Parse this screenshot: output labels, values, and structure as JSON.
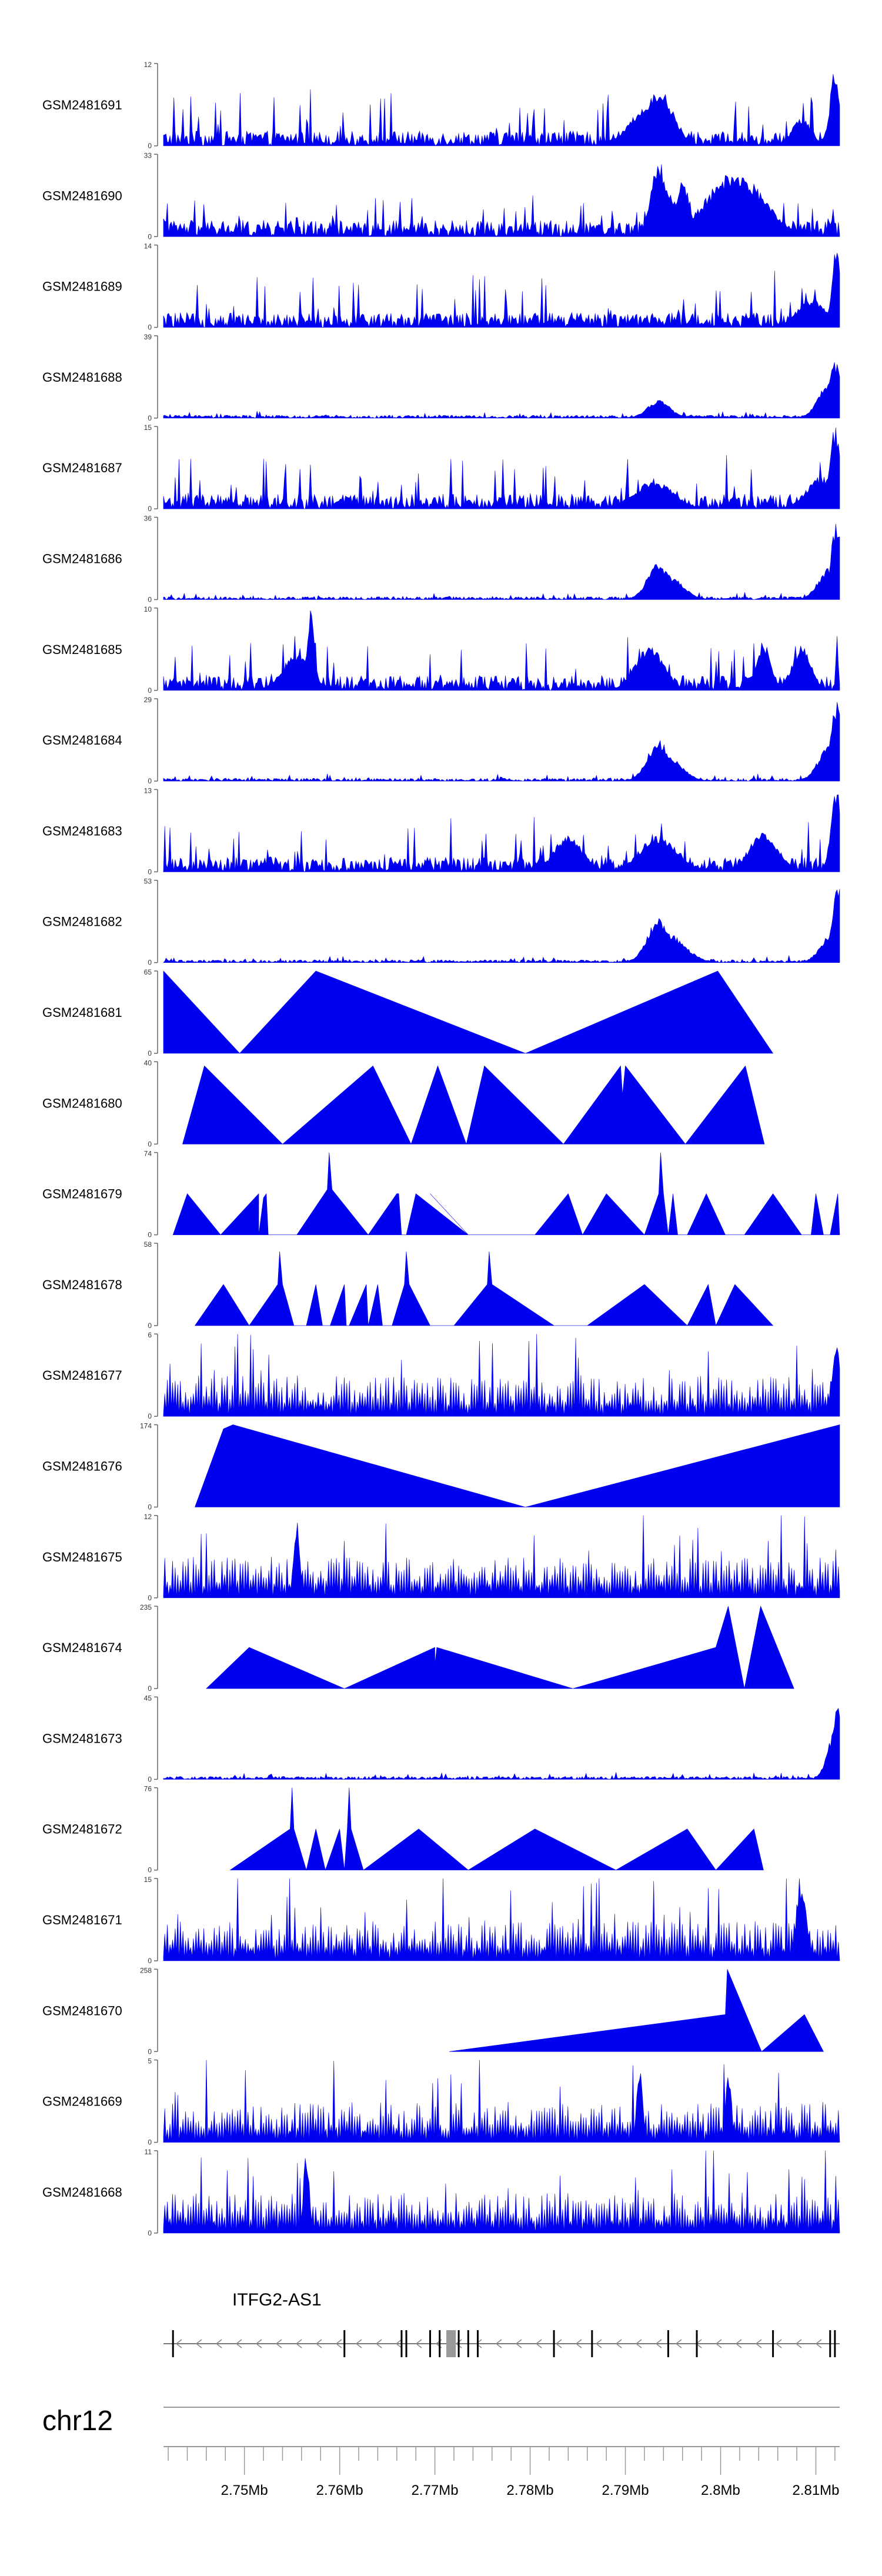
{
  "chart_data": {
    "type": "area",
    "title": "",
    "chromosome": "chr12",
    "gene": {
      "name": "ITFG2-AS1",
      "strand": "-"
    },
    "x_unit": "Mb",
    "xlim": [
      2.7415,
      2.8125
    ],
    "x_ticks": [
      2.75,
      2.76,
      2.77,
      2.78,
      2.79,
      2.8,
      2.81
    ],
    "x_tick_labels": [
      "2.75Mb",
      "2.76Mb",
      "2.77Mb",
      "2.78Mb",
      "2.79Mb",
      "2.8Mb",
      "2.81Mb"
    ],
    "exons_mb": [
      2.7425,
      2.7605,
      2.7665,
      2.767,
      2.7695,
      2.7705,
      2.7715,
      2.7725,
      2.7735,
      2.7745,
      2.7825,
      2.7865,
      2.7945,
      2.7975,
      2.8055,
      2.8115,
      2.812
    ],
    "exon_block_mb": [
      2.7712,
      2.7722
    ],
    "tracks": [
      {
        "name": "GSM2481691",
        "ymax": 12,
        "ymin_label": "0",
        "ymax_label": "12",
        "style": "dense",
        "peaks": [
          [
            2.7935,
            0.7,
            0.0015
          ],
          [
            2.7925,
            0.5,
            0.002
          ],
          [
            2.812,
            1.0,
            0.0005
          ],
          [
            2.8085,
            0.35,
            0.001
          ]
        ]
      },
      {
        "name": "GSM2481690",
        "ymax": 33,
        "ymin_label": "0",
        "ymax_label": "33",
        "style": "sparse-tri",
        "peaks": [
          [
            2.8015,
            0.8,
            0.003
          ],
          [
            2.7935,
            0.95,
            0.0008
          ],
          [
            2.796,
            0.7,
            0.0008
          ],
          [
            2.7945,
            0.6,
            0.0008
          ]
        ]
      },
      {
        "name": "GSM2481689",
        "ymax": 14,
        "ymin_label": "0",
        "ymax_label": "14",
        "style": "dense",
        "peaks": [
          [
            2.8122,
            1.0,
            0.0005
          ],
          [
            2.8095,
            0.35,
            0.0015
          ]
        ]
      },
      {
        "name": "GSM2481688",
        "ymax": 39,
        "ymin_label": "0",
        "ymax_label": "39",
        "style": "low",
        "peaks": [
          [
            2.7935,
            0.22,
            0.0012
          ],
          [
            2.812,
            0.7,
            0.0008
          ],
          [
            2.8115,
            0.45,
            0.0012
          ]
        ]
      },
      {
        "name": "GSM2481687",
        "ymax": 15,
        "ymin_label": "0",
        "ymax_label": "15",
        "style": "dense",
        "peaks": [
          [
            2.812,
            1.0,
            0.0006
          ],
          [
            2.8105,
            0.4,
            0.0015
          ],
          [
            2.793,
            0.35,
            0.002
          ]
        ]
      },
      {
        "name": "GSM2481686",
        "ymax": 36,
        "ymin_label": "0",
        "ymax_label": "36",
        "style": "low",
        "peaks": [
          [
            2.7935,
            0.45,
            0.0012
          ],
          [
            2.7945,
            0.3,
            0.0015
          ],
          [
            2.8122,
            0.98,
            0.0006
          ],
          [
            2.8115,
            0.4,
            0.0012
          ]
        ]
      },
      {
        "name": "GSM2481685",
        "ymax": 10,
        "ymin_label": "0",
        "ymax_label": "10",
        "style": "dense",
        "peaks": [
          [
            2.757,
            1.0,
            0.0004
          ],
          [
            2.7555,
            0.45,
            0.0015
          ],
          [
            2.7925,
            0.55,
            0.0015
          ],
          [
            2.8045,
            0.6,
            0.0008
          ],
          [
            2.8085,
            0.55,
            0.001
          ]
        ]
      },
      {
        "name": "GSM2481684",
        "ymax": 29,
        "ymin_label": "0",
        "ymax_label": "29",
        "style": "low",
        "peaks": [
          [
            2.7935,
            0.5,
            0.0012
          ],
          [
            2.7945,
            0.3,
            0.0015
          ],
          [
            2.8122,
            1.0,
            0.0006
          ],
          [
            2.8115,
            0.45,
            0.0012
          ]
        ]
      },
      {
        "name": "GSM2481683",
        "ymax": 13,
        "ymin_label": "0",
        "ymax_label": "13",
        "style": "dense",
        "peaks": [
          [
            2.8122,
            1.0,
            0.0006
          ],
          [
            2.7935,
            0.45,
            0.002
          ],
          [
            2.8045,
            0.5,
            0.0015
          ],
          [
            2.784,
            0.45,
            0.0015
          ]
        ]
      },
      {
        "name": "GSM2481682",
        "ymax": 53,
        "ymin_label": "0",
        "ymax_label": "53",
        "style": "low",
        "peaks": [
          [
            2.7935,
            0.55,
            0.0012
          ],
          [
            2.7945,
            0.35,
            0.0018
          ],
          [
            2.8123,
            1.0,
            0.0006
          ],
          [
            2.8117,
            0.35,
            0.0012
          ]
        ]
      },
      {
        "name": "GSM2481681",
        "ymax": 65,
        "ymin_label": "0",
        "ymax_label": "65",
        "style": "points",
        "points": [
          [
            2.7415,
            1.0
          ],
          [
            2.7495,
            0.0
          ],
          [
            2.7575,
            1.0
          ],
          [
            2.7795,
            0.0
          ],
          [
            2.7997,
            1.0
          ],
          [
            2.8055,
            0.0
          ]
        ]
      },
      {
        "name": "GSM2481680",
        "ymax": 40,
        "ymin_label": "0",
        "ymax_label": "40",
        "style": "points",
        "points": [
          [
            2.7435,
            0.0
          ],
          [
            2.7458,
            0.95
          ],
          [
            2.754,
            0.0
          ],
          [
            2.7635,
            0.95
          ],
          [
            2.7675,
            0.0
          ],
          [
            2.7703,
            0.95
          ],
          [
            2.7733,
            0.0
          ],
          [
            2.7752,
            0.95
          ],
          [
            2.7835,
            0.0
          ],
          [
            2.7895,
            0.95
          ],
          [
            2.7897,
            0.6
          ],
          [
            2.79,
            0.95
          ],
          [
            2.7963,
            0.0
          ],
          [
            2.8026,
            0.95
          ],
          [
            2.8046,
            0.0
          ]
        ]
      },
      {
        "name": "GSM2481679",
        "ymax": 74,
        "ymin_label": "0",
        "ymax_label": "74",
        "style": "points",
        "points": [
          [
            2.7425,
            0.0
          ],
          [
            2.744,
            0.5
          ],
          [
            2.7475,
            0.0
          ],
          [
            2.7515,
            0.5
          ],
          [
            2.7515,
            0.0
          ],
          [
            2.752,
            0.45
          ],
          [
            2.7523,
            0.5
          ],
          [
            2.7525,
            0.0
          ],
          [
            2.7555,
            0.0
          ],
          [
            2.7587,
            0.55
          ],
          [
            2.7589,
            1.0
          ],
          [
            2.7592,
            0.55
          ],
          [
            2.763,
            0.0
          ],
          [
            2.766,
            0.5
          ],
          [
            2.7662,
            0.5
          ],
          [
            2.7665,
            0.0
          ],
          [
            2.767,
            0.0
          ],
          [
            2.768,
            0.5
          ],
          [
            2.7735,
            0.0
          ],
          [
            2.7695,
            0.5
          ],
          [
            2.7735,
            0.0
          ],
          [
            2.7805,
            0.0
          ],
          [
            2.784,
            0.5
          ],
          [
            2.7855,
            0.0
          ],
          [
            2.788,
            0.5
          ],
          [
            2.792,
            0.0
          ],
          [
            2.7935,
            0.5
          ],
          [
            2.7937,
            1.0
          ],
          [
            2.794,
            0.5
          ],
          [
            2.7945,
            0.0
          ],
          [
            2.795,
            0.5
          ],
          [
            2.7955,
            0.0
          ],
          [
            2.7965,
            0.0
          ],
          [
            2.7985,
            0.5
          ],
          [
            2.8005,
            0.0
          ],
          [
            2.8025,
            0.0
          ],
          [
            2.8055,
            0.5
          ],
          [
            2.8085,
            0.0
          ],
          [
            2.8095,
            0.0
          ],
          [
            2.81,
            0.5
          ],
          [
            2.8108,
            0.0
          ],
          [
            2.8115,
            0.0
          ],
          [
            2.8123,
            0.5
          ],
          [
            2.8125,
            0.0
          ]
        ]
      },
      {
        "name": "GSM2481678",
        "ymax": 58,
        "ymin_label": "0",
        "ymax_label": "58",
        "style": "points",
        "points": [
          [
            2.7448,
            0.0
          ],
          [
            2.7478,
            0.5
          ],
          [
            2.7505,
            0.0
          ],
          [
            2.7535,
            0.5
          ],
          [
            2.7537,
            0.9
          ],
          [
            2.754,
            0.5
          ],
          [
            2.7552,
            0.0
          ],
          [
            2.7565,
            0.0
          ],
          [
            2.7575,
            0.5
          ],
          [
            2.7582,
            0.0
          ],
          [
            2.759,
            0.0
          ],
          [
            2.7605,
            0.5
          ],
          [
            2.7607,
            0.0
          ],
          [
            2.761,
            0.0
          ],
          [
            2.7628,
            0.5
          ],
          [
            2.763,
            0.0
          ],
          [
            2.764,
            0.5
          ],
          [
            2.7645,
            0.0
          ],
          [
            2.7655,
            0.0
          ],
          [
            2.7668,
            0.5
          ],
          [
            2.767,
            0.9
          ],
          [
            2.7673,
            0.5
          ],
          [
            2.7695,
            0.0
          ],
          [
            2.772,
            0.0
          ],
          [
            2.7755,
            0.5
          ],
          [
            2.7757,
            0.9
          ],
          [
            2.776,
            0.5
          ],
          [
            2.7825,
            0.0
          ],
          [
            2.786,
            0.0
          ],
          [
            2.792,
            0.5
          ],
          [
            2.7965,
            0.0
          ],
          [
            2.7987,
            0.5
          ],
          [
            2.7995,
            0.0
          ],
          [
            2.8015,
            0.5
          ],
          [
            2.8055,
            0.0
          ]
        ]
      },
      {
        "name": "GSM2481677",
        "ymax": 6,
        "ymin_label": "0",
        "ymax_label": "6",
        "style": "dense-high",
        "peaks": [
          [
            2.8122,
            0.85,
            0.0005
          ]
        ]
      },
      {
        "name": "GSM2481676",
        "ymax": 174,
        "ymin_label": "0",
        "ymax_label": "174",
        "style": "points",
        "points": [
          [
            2.7448,
            0.0
          ],
          [
            2.7478,
            0.95
          ],
          [
            2.7488,
            1.0
          ],
          [
            2.7795,
            0.0
          ],
          [
            2.8125,
            1.0
          ]
        ]
      },
      {
        "name": "GSM2481675",
        "ymax": 12,
        "ymin_label": "0",
        "ymax_label": "12",
        "style": "dense-high",
        "peaks": [
          [
            2.7555,
            1.0,
            0.0003
          ]
        ]
      },
      {
        "name": "GSM2481674",
        "ymax": 235,
        "ymin_label": "0",
        "ymax_label": "235",
        "style": "points",
        "points": [
          [
            2.746,
            0.0
          ],
          [
            2.7505,
            0.5
          ],
          [
            2.7605,
            0.0
          ],
          [
            2.77,
            0.5
          ],
          [
            2.77,
            0.3
          ],
          [
            2.7702,
            0.5
          ],
          [
            2.7845,
            0.0
          ],
          [
            2.7995,
            0.5
          ],
          [
            2.8008,
            1.0
          ],
          [
            2.8025,
            0.0
          ],
          [
            2.8042,
            1.0
          ],
          [
            2.8077,
            0.0
          ]
        ]
      },
      {
        "name": "GSM2481673",
        "ymax": 45,
        "ymin_label": "0",
        "ymax_label": "45",
        "style": "low",
        "peaks": [
          [
            2.8123,
            1.0,
            0.0005
          ],
          [
            2.812,
            0.6,
            0.0008
          ]
        ]
      },
      {
        "name": "GSM2481672",
        "ymax": 76,
        "ymin_label": "0",
        "ymax_label": "76",
        "style": "points",
        "points": [
          [
            2.7485,
            0.0
          ],
          [
            2.7548,
            0.5
          ],
          [
            2.755,
            1.0
          ],
          [
            2.7552,
            0.5
          ],
          [
            2.7565,
            0.0
          ],
          [
            2.7575,
            0.5
          ],
          [
            2.7585,
            0.0
          ],
          [
            2.76,
            0.5
          ],
          [
            2.7605,
            0.0
          ],
          [
            2.7608,
            0.5
          ],
          [
            2.761,
            1.0
          ],
          [
            2.7612,
            0.5
          ],
          [
            2.7625,
            0.0
          ],
          [
            2.7683,
            0.5
          ],
          [
            2.7735,
            0.0
          ],
          [
            2.7805,
            0.5
          ],
          [
            2.789,
            0.0
          ],
          [
            2.7965,
            0.5
          ],
          [
            2.7995,
            0.0
          ],
          [
            2.8035,
            0.5
          ],
          [
            2.8045,
            0.0
          ]
        ]
      },
      {
        "name": "GSM2481671",
        "ymax": 15,
        "ymin_label": "0",
        "ymax_label": "15",
        "style": "dense-high",
        "peaks": [
          [
            2.8085,
            1.0,
            0.0005
          ]
        ]
      },
      {
        "name": "GSM2481670",
        "ymax": 258,
        "ymin_label": "0",
        "ymax_label": "258",
        "style": "points",
        "points": [
          [
            2.7715,
            0.0
          ],
          [
            2.8005,
            0.45
          ],
          [
            2.8007,
            1.0
          ],
          [
            2.8043,
            0.0
          ],
          [
            2.8088,
            0.45
          ],
          [
            2.8108,
            0.0
          ]
        ]
      },
      {
        "name": "GSM2481669",
        "ymax": 5,
        "ymin_label": "0",
        "ymax_label": "5",
        "style": "dense-high",
        "peaks": [
          [
            2.7915,
            1.0,
            0.0003
          ],
          [
            2.8008,
            0.9,
            0.0003
          ]
        ]
      },
      {
        "name": "GSM2481668",
        "ymax": 11,
        "ymin_label": "0",
        "ymax_label": "11",
        "style": "dense-high",
        "peaks": [
          [
            2.7565,
            1.0,
            0.0003
          ]
        ]
      }
    ]
  }
}
